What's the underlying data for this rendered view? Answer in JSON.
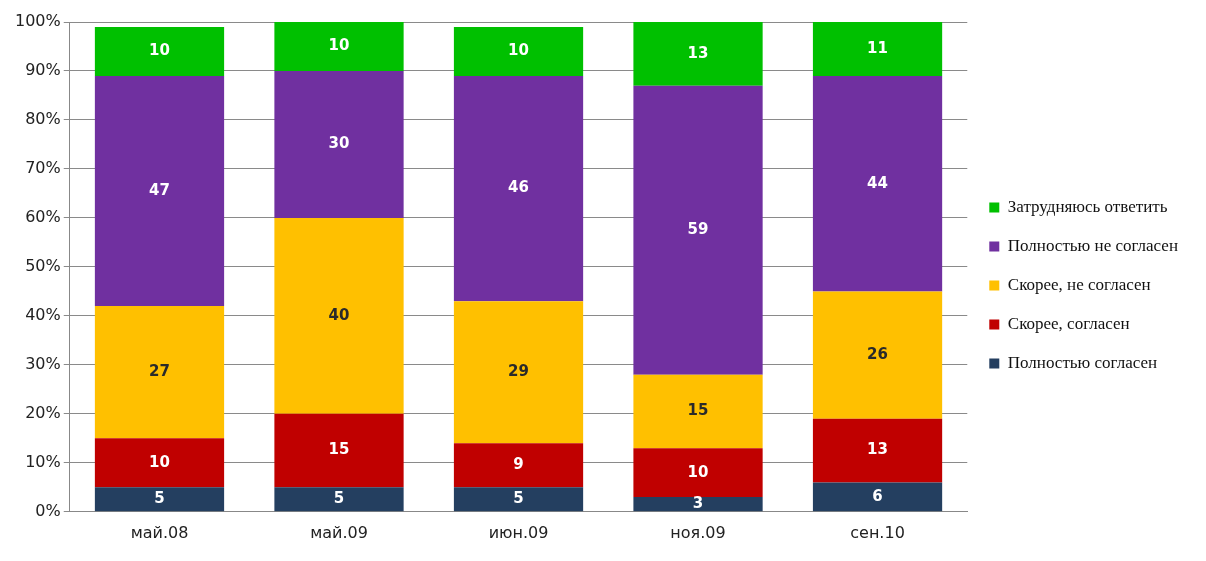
{
  "chart_data": {
    "type": "bar",
    "stacked": true,
    "categories": [
      "май.08",
      "май.09",
      "июн.09",
      "ноя.09",
      "сен.10"
    ],
    "series": [
      {
        "name": "Полностью согласен",
        "color": "#243f60",
        "values": [
          5,
          5,
          5,
          3,
          6
        ]
      },
      {
        "name": "Скорее, согласен",
        "color": "#c00000",
        "values": [
          10,
          15,
          9,
          10,
          13
        ]
      },
      {
        "name": "Скорее, не согласен",
        "color": "#ffc000",
        "values": [
          27,
          40,
          29,
          15,
          26
        ]
      },
      {
        "name": "Полностью не согласен",
        "color": "#7030a0",
        "values": [
          47,
          30,
          46,
          59,
          44
        ]
      },
      {
        "name": "Затрудняюсь ответить",
        "color": "#00c000",
        "values": [
          10,
          10,
          10,
          13,
          11
        ]
      }
    ],
    "ylim": [
      0,
      100
    ],
    "yticks": [
      {
        "value": 0,
        "label": "0%"
      },
      {
        "value": 10,
        "label": "10%"
      },
      {
        "value": 20,
        "label": "20%"
      },
      {
        "value": 30,
        "label": "30%"
      },
      {
        "value": 40,
        "label": "40%"
      },
      {
        "value": 50,
        "label": "50%"
      },
      {
        "value": 60,
        "label": "60%"
      },
      {
        "value": 70,
        "label": "70%"
      },
      {
        "value": 80,
        "label": "80%"
      },
      {
        "value": 90,
        "label": "90%"
      },
      {
        "value": 100,
        "label": "100%"
      }
    ],
    "grid": "y",
    "legend": "right",
    "data_labels": true
  }
}
